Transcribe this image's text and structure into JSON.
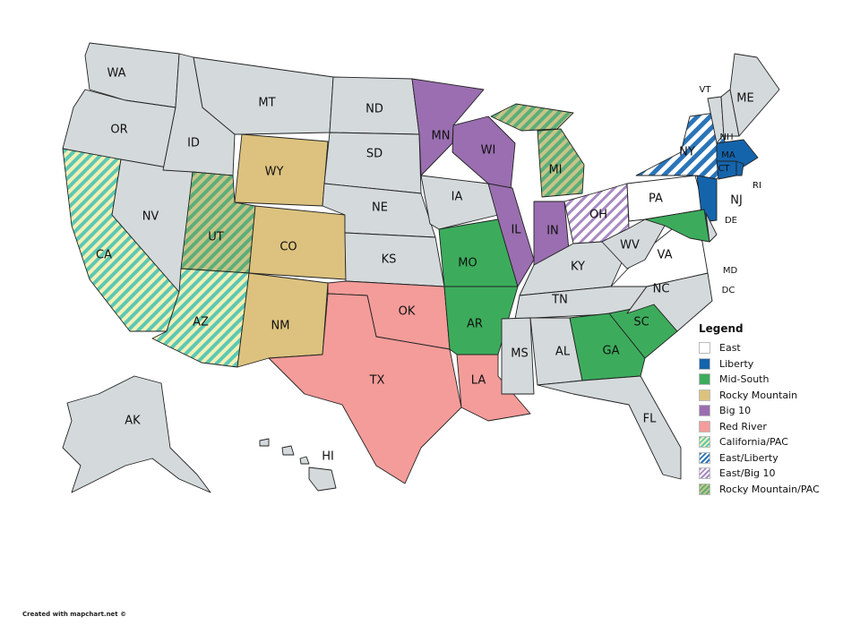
{
  "colors": {
    "none": "#d4dadc",
    "East": "#ffffff",
    "Liberty": "#1464ac",
    "Mid-South": "#3cac5c",
    "Rocky Mountain": "#dcc27e",
    "Big 10": "#9a6eb0",
    "Red River": "#f49c9a"
  },
  "legend": {
    "title": "Legend",
    "items": [
      {
        "label": "East",
        "fill": "#ffffff"
      },
      {
        "label": "Liberty",
        "fill": "#1464ac"
      },
      {
        "label": "Mid-South",
        "fill": "#3cac5c"
      },
      {
        "label": "Rocky Mountain",
        "fill": "#dcc27e"
      },
      {
        "label": "Big 10",
        "fill": "#9a6eb0"
      },
      {
        "label": "Red River",
        "fill": "#f49c9a"
      },
      {
        "label": "California/PAC",
        "pattern": "teal/yellow stripes"
      },
      {
        "label": "East/Liberty",
        "pattern": "blue/white stripes"
      },
      {
        "label": "East/Big 10",
        "pattern": "purple/white stripes"
      },
      {
        "label": "Rocky Mountain/PAC",
        "pattern": "green/tan stripes"
      }
    ]
  },
  "states": {
    "WA": "none",
    "OR": "none",
    "CA": "California/PAC",
    "NV": "none",
    "ID": "none",
    "MT": "none",
    "WY": "Rocky Mountain",
    "UT": "Rocky Mountain/PAC",
    "CO": "Rocky Mountain",
    "AZ": "California/PAC",
    "NM": "Rocky Mountain",
    "ND": "none",
    "SD": "none",
    "NE": "none",
    "KS": "none",
    "OK": "Red River",
    "TX": "Red River",
    "MN": "Big 10",
    "IA": "none",
    "MO": "Mid-South",
    "AR": "Mid-South",
    "LA": "Red River",
    "WI": "Big 10",
    "IL": "Big 10",
    "IN": "Big 10",
    "MI": "Rocky Mountain/PAC",
    "OH": "East/Big 10",
    "KY": "none",
    "TN": "none",
    "MS": "none",
    "AL": "none",
    "GA": "Mid-South",
    "FL": "none",
    "SC": "Mid-South",
    "NC": "none",
    "VA": "East",
    "WV": "none",
    "PA": "East",
    "NY": "East/Liberty",
    "NJ": "Liberty",
    "MD": "Mid-South",
    "DE": "none",
    "DC": "none",
    "VT": "none",
    "NH": "none",
    "ME": "none",
    "MA": "Liberty",
    "CT": "Liberty",
    "RI": "Liberty",
    "AK": "none",
    "HI": "none"
  },
  "credit": "Created with mapchart.net ©"
}
